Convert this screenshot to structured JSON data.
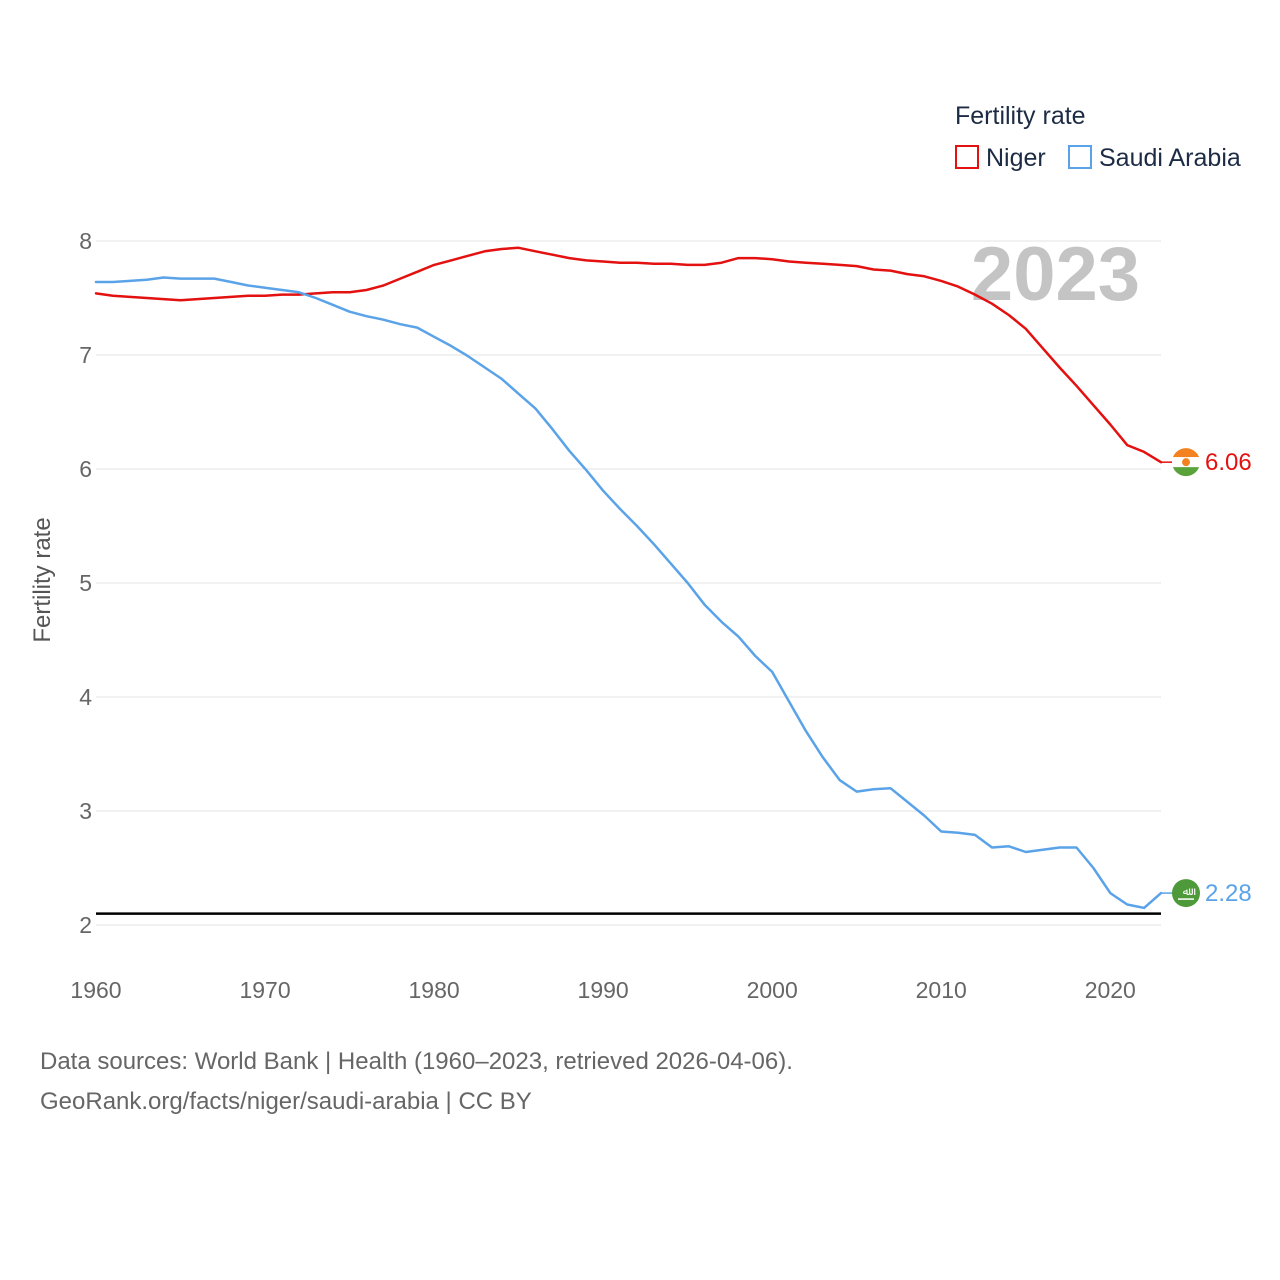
{
  "chart_data": {
    "type": "line",
    "title": "",
    "ylabel": "Fertility rate",
    "xlabel": "",
    "xlim": [
      1960,
      2023
    ],
    "ylim": [
      2,
      8
    ],
    "y_ticks": [
      2,
      3,
      4,
      5,
      6,
      7,
      8
    ],
    "x_ticks": [
      1960,
      1970,
      1980,
      1990,
      2000,
      2010,
      2020
    ],
    "grid": true,
    "year_label": "2023",
    "reference_line": {
      "value": 2.1,
      "color": "#000000"
    },
    "legend": {
      "title": "Fertility rate",
      "position": "top-right",
      "entries": [
        "Niger",
        "Saudi Arabia"
      ]
    },
    "x": [
      1960,
      1961,
      1962,
      1963,
      1964,
      1965,
      1966,
      1967,
      1968,
      1969,
      1970,
      1971,
      1972,
      1973,
      1974,
      1975,
      1976,
      1977,
      1978,
      1979,
      1980,
      1981,
      1982,
      1983,
      1984,
      1985,
      1986,
      1987,
      1988,
      1989,
      1990,
      1991,
      1992,
      1993,
      1994,
      1995,
      1996,
      1997,
      1998,
      1999,
      2000,
      2001,
      2002,
      2003,
      2004,
      2005,
      2006,
      2007,
      2008,
      2009,
      2010,
      2011,
      2012,
      2013,
      2014,
      2015,
      2016,
      2017,
      2018,
      2019,
      2020,
      2021,
      2022,
      2023
    ],
    "series": [
      {
        "name": "Niger",
        "color": "#e3110f",
        "end_label": "6.06",
        "values": [
          7.54,
          7.52,
          7.51,
          7.5,
          7.49,
          7.48,
          7.49,
          7.5,
          7.51,
          7.52,
          7.52,
          7.53,
          7.53,
          7.54,
          7.55,
          7.55,
          7.57,
          7.61,
          7.67,
          7.73,
          7.79,
          7.83,
          7.87,
          7.91,
          7.93,
          7.94,
          7.91,
          7.88,
          7.85,
          7.83,
          7.82,
          7.81,
          7.81,
          7.8,
          7.8,
          7.79,
          7.79,
          7.81,
          7.85,
          7.85,
          7.84,
          7.82,
          7.81,
          7.8,
          7.79,
          7.78,
          7.75,
          7.74,
          7.71,
          7.69,
          7.65,
          7.6,
          7.53,
          7.45,
          7.35,
          7.23,
          7.06,
          6.89,
          6.73,
          6.56,
          6.39,
          6.21,
          6.15,
          6.06
        ]
      },
      {
        "name": "Saudi Arabia",
        "color": "#5aa3e8",
        "end_label": "2.28",
        "values": [
          7.64,
          7.64,
          7.65,
          7.66,
          7.68,
          7.67,
          7.67,
          7.67,
          7.64,
          7.61,
          7.59,
          7.57,
          7.55,
          7.5,
          7.44,
          7.38,
          7.34,
          7.31,
          7.27,
          7.24,
          7.16,
          7.08,
          6.99,
          6.89,
          6.79,
          6.66,
          6.53,
          6.35,
          6.16,
          5.99,
          5.81,
          5.65,
          5.5,
          5.34,
          5.17,
          5.0,
          4.81,
          4.66,
          4.53,
          4.36,
          4.22,
          3.96,
          3.7,
          3.47,
          3.27,
          3.17,
          3.19,
          3.2,
          3.08,
          2.96,
          2.82,
          2.81,
          2.79,
          2.68,
          2.69,
          2.64,
          2.66,
          2.68,
          2.68,
          2.5,
          2.28,
          2.18,
          2.15,
          2.28
        ]
      }
    ]
  },
  "footer": {
    "line1": "Data sources: World Bank | Health (1960–2023, retrieved 2026-04-06).",
    "line2": "GeoRank.org/facts/niger/saudi-arabia | CC BY"
  },
  "icons": {
    "niger": "niger-flag-icon",
    "saudi_arabia": "saudi-arabia-flag-icon"
  }
}
